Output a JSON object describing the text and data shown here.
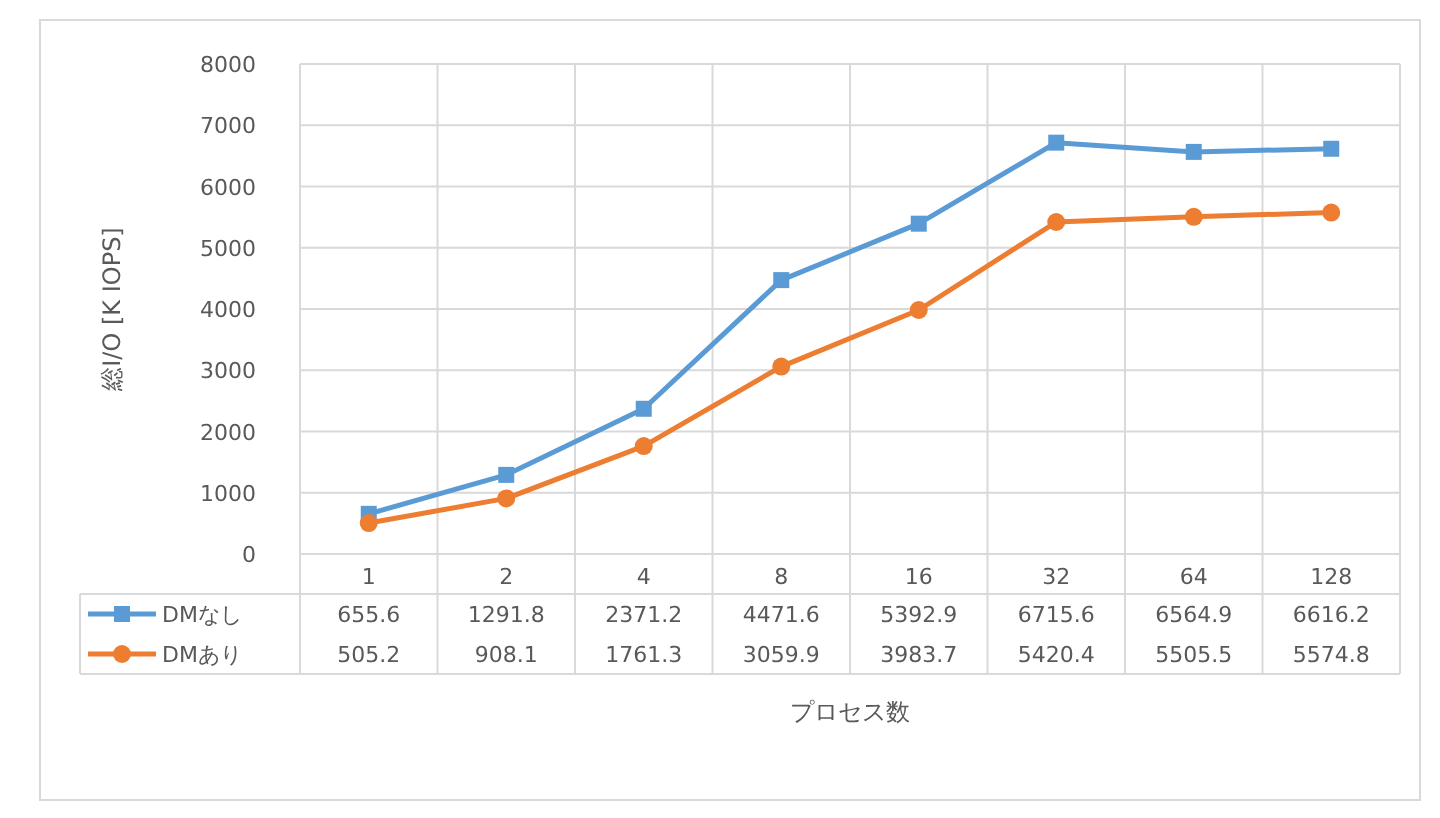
{
  "chart_data": {
    "type": "line",
    "ylabel": "総I/O [K IOPS]",
    "xlabel": "プロセス数",
    "categories": [
      "1",
      "2",
      "4",
      "8",
      "16",
      "32",
      "64",
      "128"
    ],
    "series": [
      {
        "name": "DMなし",
        "color": "#5b9bd5",
        "marker": "square",
        "values": [
          655.6,
          1291.8,
          2371.2,
          4471.6,
          5392.9,
          6715.6,
          6564.9,
          6616.2
        ]
      },
      {
        "name": "DMあり",
        "color": "#ed7d31",
        "marker": "circle",
        "values": [
          505.2,
          908.1,
          1761.3,
          3059.9,
          3983.7,
          5420.4,
          5505.5,
          5574.8
        ]
      }
    ],
    "ylim": [
      0,
      8000
    ],
    "yticks": [
      0,
      1000,
      2000,
      3000,
      4000,
      5000,
      6000,
      7000,
      8000
    ],
    "grid": true,
    "legend": "bottom left",
    "data_labels": true,
    "line_style": "solid"
  }
}
